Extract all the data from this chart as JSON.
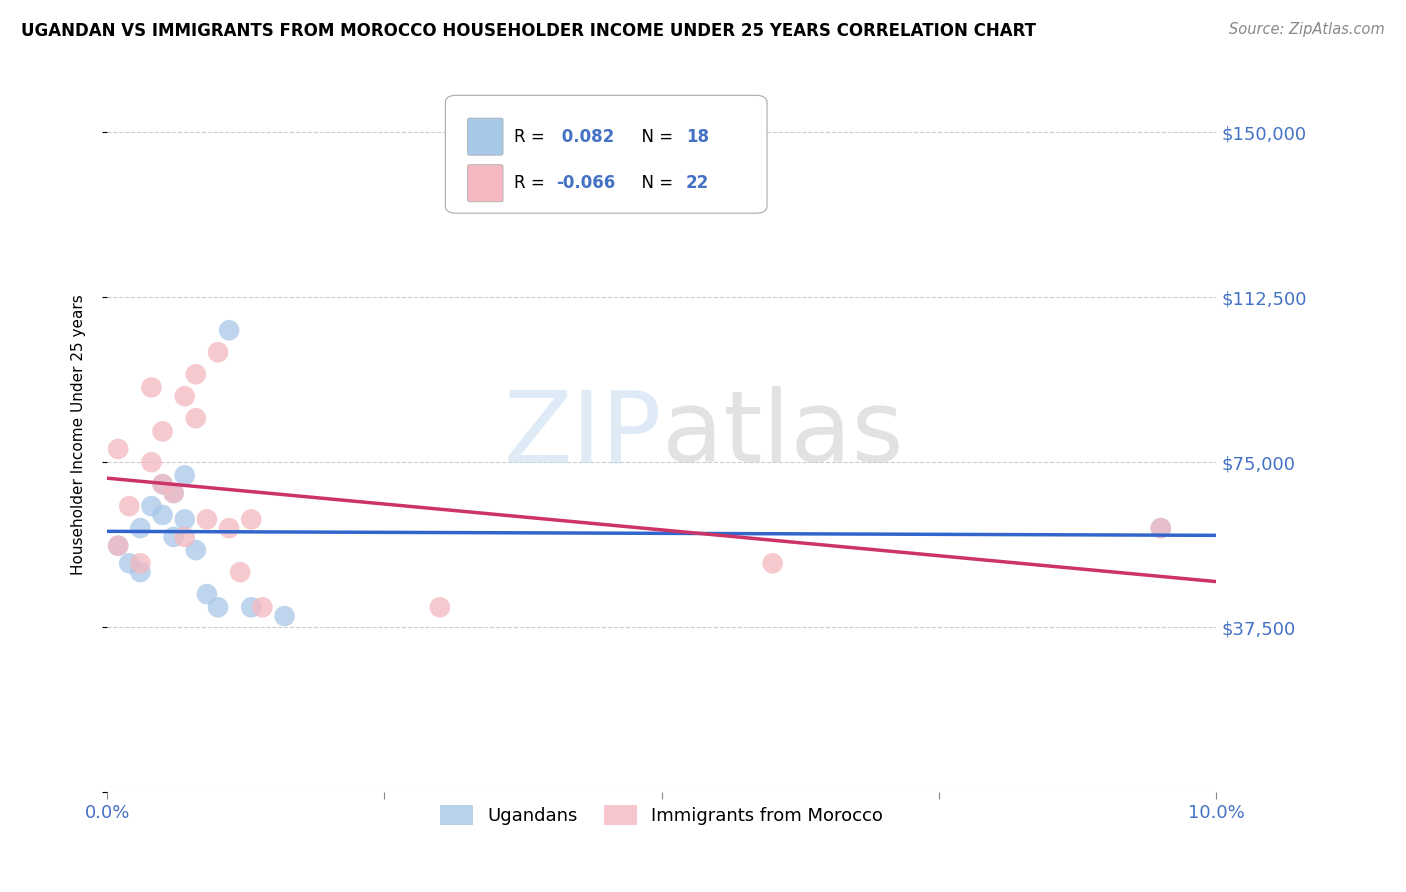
{
  "title": "UGANDAN VS IMMIGRANTS FROM MOROCCO HOUSEHOLDER INCOME UNDER 25 YEARS CORRELATION CHART",
  "source": "Source: ZipAtlas.com",
  "ylabel": "Householder Income Under 25 years",
  "watermark_zip": "ZIP",
  "watermark_atlas": "atlas",
  "legend_blue_label": "Ugandans",
  "legend_pink_label": "Immigrants from Morocco",
  "y_ticks": [
    0,
    37500,
    75000,
    112500,
    150000
  ],
  "y_tick_labels": [
    "",
    "$37,500",
    "$75,000",
    "$112,500",
    "$150,000"
  ],
  "x_range": [
    0.0,
    0.1
  ],
  "y_range": [
    0,
    162500
  ],
  "blue_scatter_color": "#a8c8e8",
  "pink_scatter_color": "#f4b8c0",
  "blue_line_color": "#3366cc",
  "pink_line_color": "#cc3366",
  "tick_label_color": "#4472c4",
  "ugandan_x": [
    0.001,
    0.002,
    0.003,
    0.003,
    0.004,
    0.005,
    0.005,
    0.006,
    0.006,
    0.007,
    0.007,
    0.008,
    0.009,
    0.01,
    0.011,
    0.013,
    0.016,
    0.095
  ],
  "ugandan_y": [
    56000,
    52000,
    60000,
    50000,
    65000,
    70000,
    63000,
    68000,
    58000,
    72000,
    62000,
    55000,
    45000,
    42000,
    105000,
    42000,
    40000,
    60000
  ],
  "morocco_x": [
    0.001,
    0.001,
    0.002,
    0.003,
    0.004,
    0.004,
    0.005,
    0.005,
    0.006,
    0.007,
    0.007,
    0.008,
    0.008,
    0.009,
    0.01,
    0.011,
    0.012,
    0.013,
    0.014,
    0.03,
    0.06,
    0.095
  ],
  "morocco_y": [
    56000,
    78000,
    65000,
    52000,
    75000,
    92000,
    82000,
    70000,
    68000,
    58000,
    90000,
    85000,
    95000,
    62000,
    100000,
    60000,
    50000,
    62000,
    42000,
    42000,
    52000,
    60000
  ],
  "background_color": "#ffffff",
  "grid_color": "#cccccc"
}
